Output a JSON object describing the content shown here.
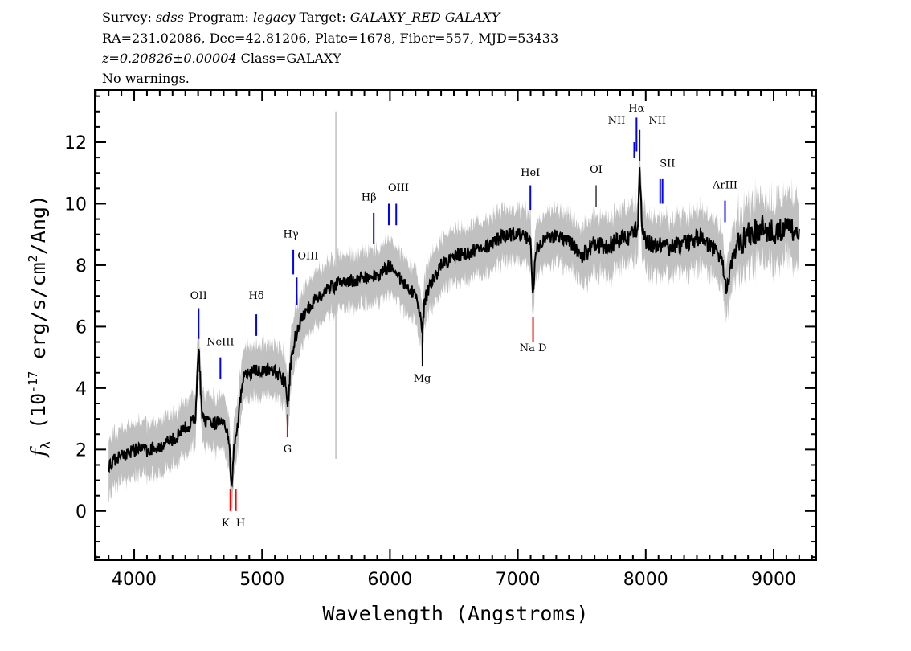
{
  "header": {
    "line1": {
      "survey_label": "Survey: ",
      "survey": "sdss",
      "program_label": " Program: ",
      "program": "legacy",
      "target_label": " Target: ",
      "target": "GALAXY_RED GALAXY"
    },
    "line2": "RA=231.02086, Dec=42.81206, Plate=1678, Fiber=557, MJD=53433",
    "line3": {
      "z": "z=0.20826±0.00004",
      "class": " Class=GALAXY"
    },
    "line4": "No warnings."
  },
  "chart_data": {
    "type": "line",
    "title": "",
    "xlabel": "Wavelength (Angstroms)",
    "ylabel": "f_λ (10^-17 erg/s/cm^2/Ang)",
    "xlim": [
      3692,
      9333
    ],
    "ylim": [
      -1.6,
      13.7
    ],
    "xticks": [
      4000,
      5000,
      6000,
      7000,
      8000,
      9000
    ],
    "yticks": [
      0,
      2,
      4,
      6,
      8,
      10,
      12
    ],
    "grid": false,
    "colors": {
      "flux": "#000000",
      "error_band": "#c0c0c0",
      "emission": "#0000ff",
      "absorption": "#ff0000",
      "other": "#000000"
    },
    "x": [
      3800,
      3900,
      4000,
      4100,
      4200,
      4300,
      4400,
      4480,
      4504,
      4530,
      4600,
      4700,
      4740,
      4760,
      4780,
      4800,
      4850,
      4900,
      5000,
      5100,
      5180,
      5200,
      5220,
      5250,
      5300,
      5400,
      5500,
      5600,
      5700,
      5800,
      5900,
      6000,
      6100,
      6200,
      6240,
      6252,
      6270,
      6300,
      6400,
      6500,
      6600,
      6700,
      6800,
      6900,
      7000,
      7100,
      7119,
      7140,
      7200,
      7300,
      7400,
      7500,
      7600,
      7700,
      7800,
      7900,
      7940,
      7952,
      7970,
      8000,
      8100,
      8200,
      8300,
      8400,
      8500,
      8600,
      8630,
      8700,
      8800,
      8900,
      9000,
      9100,
      9200
    ],
    "flux": [
      1.5,
      1.8,
      2.0,
      2.0,
      2.1,
      2.3,
      2.7,
      3.0,
      5.5,
      3.0,
      2.8,
      3.0,
      2.4,
      0.8,
      2.0,
      2.5,
      4.3,
      4.5,
      4.6,
      4.6,
      4.2,
      3.2,
      4.6,
      5.5,
      6.2,
      6.8,
      7.2,
      7.4,
      7.5,
      7.6,
      7.6,
      8.0,
      7.5,
      7.0,
      6.3,
      5.8,
      6.8,
      7.2,
      8.0,
      8.3,
      8.4,
      8.5,
      8.7,
      9.0,
      9.0,
      8.8,
      6.9,
      8.5,
      8.8,
      9.0,
      8.8,
      8.3,
      8.7,
      8.6,
      8.8,
      9.0,
      9.3,
      11.2,
      9.2,
      8.8,
      8.6,
      8.6,
      8.7,
      8.9,
      8.7,
      8.1,
      7.2,
      8.5,
      9.0,
      9.2,
      9.0,
      9.3,
      8.9
    ],
    "lines": [
      {
        "label": "OII",
        "wavelength": 4504,
        "kind": "emission"
      },
      {
        "label": "NeIII",
        "wavelength": 4674,
        "kind": "emission"
      },
      {
        "label": "K",
        "wavelength": 4752,
        "kind": "absorption"
      },
      {
        "label": "H",
        "wavelength": 4795,
        "kind": "absorption"
      },
      {
        "label": "Hδ",
        "wavelength": 4955,
        "kind": "emission"
      },
      {
        "label": "G",
        "wavelength": 5199,
        "kind": "absorption"
      },
      {
        "label": "Hγ",
        "wavelength": 5244,
        "kind": "emission"
      },
      {
        "label": "OIII",
        "wavelength": 5271,
        "kind": "emission"
      },
      {
        "label": "Hβ",
        "wavelength": 5873,
        "kind": "emission"
      },
      {
        "label": "OIII",
        "wavelength": 5991,
        "kind": "emission"
      },
      {
        "label": "",
        "wavelength": 6049,
        "kind": "emission"
      },
      {
        "label": "Mg",
        "wavelength": 6252,
        "kind": "other"
      },
      {
        "label": "HeI",
        "wavelength": 7098,
        "kind": "emission"
      },
      {
        "label": "Na D",
        "wavelength": 7119,
        "kind": "absorption"
      },
      {
        "label": "OI",
        "wavelength": 7612,
        "kind": "other"
      },
      {
        "label": "NII",
        "wavelength": 7910,
        "kind": "emission"
      },
      {
        "label": "Hα",
        "wavelength": 7928,
        "kind": "emission"
      },
      {
        "label": "NII",
        "wavelength": 7952,
        "kind": "emission"
      },
      {
        "label": "SII",
        "wavelength": 8113,
        "kind": "emission"
      },
      {
        "label": "",
        "wavelength": 8131,
        "kind": "emission"
      },
      {
        "label": "ArIII",
        "wavelength": 8620,
        "kind": "emission"
      }
    ]
  }
}
